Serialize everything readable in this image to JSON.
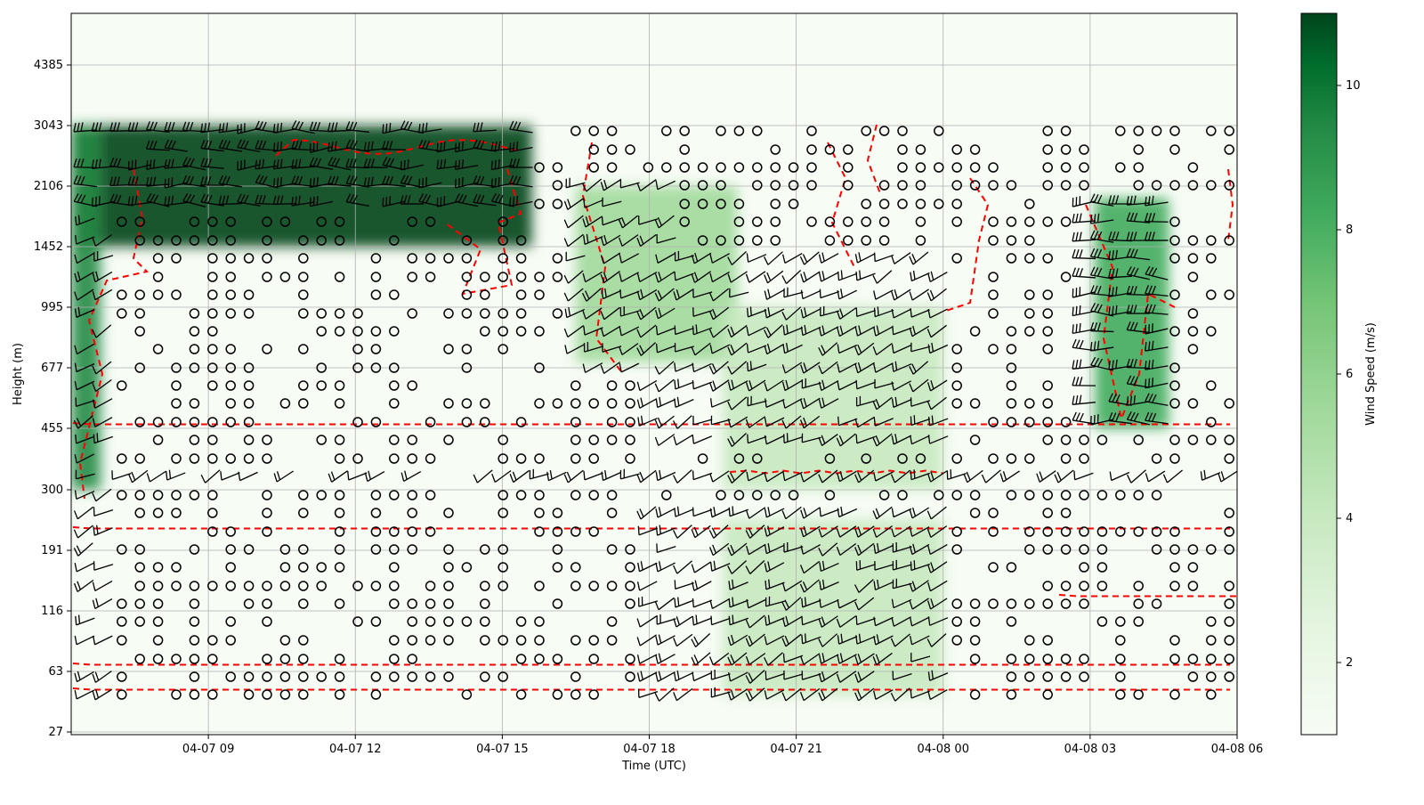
{
  "chart_data": {
    "type": "heatmap",
    "title": "",
    "xlabel": "Time (UTC)",
    "ylabel": "Height (m)",
    "x_ticks": [
      "04-07 09",
      "04-07 12",
      "04-07 15",
      "04-07 18",
      "04-07 21",
      "04-08 00",
      "04-08 03",
      "04-08 06"
    ],
    "x_tick_hours": [
      9,
      12,
      15,
      18,
      21,
      24,
      27,
      30
    ],
    "x_range_hours": [
      6.2,
      30
    ],
    "y_ticks": [
      "27",
      "63",
      "116",
      "191",
      "300",
      "455",
      "677",
      "995",
      "1452",
      "2106",
      "3043",
      "4385"
    ],
    "colorbar": {
      "label": "Wind Speed (m/s)",
      "ticks": [
        "2",
        "4",
        "6",
        "8",
        "10"
      ],
      "tick_values": [
        2,
        4,
        6,
        8,
        10
      ],
      "range": [
        1,
        11
      ],
      "colormap": "Greens",
      "color_low": "#f7fcf5",
      "color_high": "#00441b"
    },
    "grid": true,
    "contour_color": "#ff0000",
    "barb_color": "#000000",
    "high_wind_regions": [
      {
        "hours": [
          6.2,
          15.6
        ],
        "heights": [
          1452,
          3043
        ],
        "peak_ms": 10.5
      },
      {
        "hours": [
          6.2,
          6.8
        ],
        "heights": [
          300,
          3043
        ],
        "peak_ms": 9
      },
      {
        "hours": [
          16.5,
          19.8
        ],
        "heights": [
          700,
          2106
        ],
        "peak_ms": 5
      },
      {
        "hours": [
          19.5,
          24.0
        ],
        "heights": [
          300,
          995
        ],
        "peak_ms": 4
      },
      {
        "hours": [
          19.5,
          24.0
        ],
        "heights": [
          45,
          240
        ],
        "peak_ms": 4
      },
      {
        "hours": [
          27.1,
          28.6
        ],
        "heights": [
          455,
          1952
        ],
        "peak_ms": 7.5
      }
    ]
  }
}
